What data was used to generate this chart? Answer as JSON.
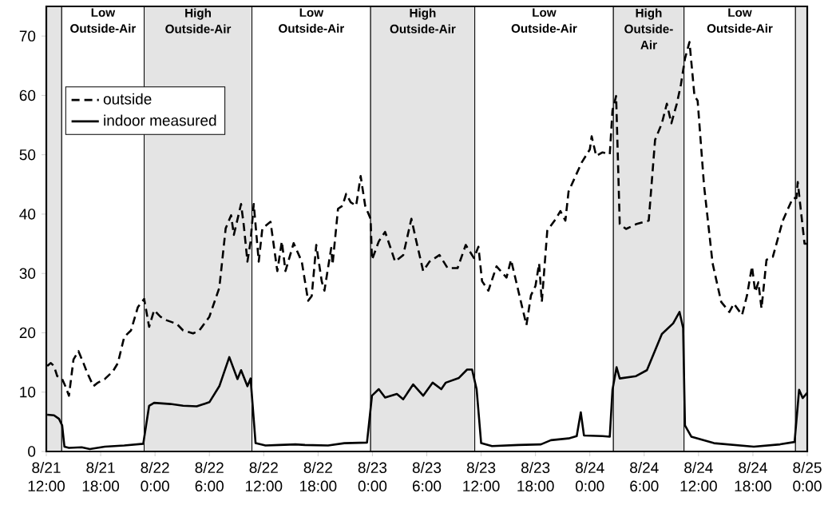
{
  "chart_data": {
    "type": "line",
    "xlim": [
      "--08-21T12:00",
      "--08-25T00:00"
    ],
    "xticks": [
      {
        "value": "--08-21T12:00",
        "label": "8/21 12:00"
      },
      {
        "value": "--08-21T18:00",
        "label": "8/21 18:00"
      },
      {
        "value": "--08-22T00:00",
        "label": "8/22 0:00"
      },
      {
        "value": "--08-22T06:00",
        "label": "8/22 6:00"
      },
      {
        "value": "--08-22T12:00",
        "label": "8/22 12:00"
      },
      {
        "value": "--08-22T18:00",
        "label": "8/22 18:00"
      },
      {
        "value": "--08-23T00:00",
        "label": "8/23 0:00"
      },
      {
        "value": "--08-23T06:00",
        "label": "8/23 6:00"
      },
      {
        "value": "--08-23T12:00",
        "label": "8/23 12:00"
      },
      {
        "value": "--08-23T18:00",
        "label": "8/23 18:00"
      },
      {
        "value": "--08-24T00:00",
        "label": "8/24 0:00"
      },
      {
        "value": "--08-24T06:00",
        "label": "8/24 6:00"
      },
      {
        "value": "--08-24T12:00",
        "label": "8/24 12:00"
      },
      {
        "value": "--08-24T18:00",
        "label": "8/24 18:00"
      },
      {
        "value": "--08-25T00:00",
        "label": "8/25 0:00"
      }
    ],
    "ylim": [
      0,
      75
    ],
    "yticks": [
      0,
      10,
      20,
      30,
      40,
      50,
      60,
      70
    ],
    "legend": "top left",
    "bands": [
      {
        "axis": "x",
        "from": "--08-21T12:00",
        "to": "--08-21T13:42",
        "color": "#e4e4e4"
      },
      {
        "axis": "x",
        "from": "--08-21T13:42",
        "to": "--08-21T22:48",
        "label": "Low Outside-Air",
        "color": "#ffffff"
      },
      {
        "axis": "x",
        "from": "--08-21T22:48",
        "to": "--08-22T10:42",
        "label": "High Outside-Air",
        "color": "#e4e4e4"
      },
      {
        "axis": "x",
        "from": "--08-22T10:42",
        "to": "--08-22T23:48",
        "label": "Low Outside-Air",
        "color": "#ffffff"
      },
      {
        "axis": "x",
        "from": "--08-22T23:48",
        "to": "--08-23T11:18",
        "label": "High Outside-Air",
        "color": "#e4e4e4"
      },
      {
        "axis": "x",
        "from": "--08-23T11:18",
        "to": "--08-24T02:36",
        "label": "Low Outside-Air",
        "color": "#ffffff"
      },
      {
        "axis": "x",
        "from": "--08-24T02:36",
        "to": "--08-24T10:24",
        "label": "High Outside-Air",
        "color": "#e4e4e4"
      },
      {
        "axis": "x",
        "from": "--08-24T10:24",
        "to": "--08-24T22:42",
        "label": "Low Outside-Air",
        "color": "#ffffff"
      },
      {
        "axis": "x",
        "from": "--08-24T22:42",
        "to": "--08-25T00:00",
        "color": "#e4e4e4"
      }
    ],
    "series": [
      {
        "name": "outside",
        "color": "#000000",
        "line_style": "dashed",
        "x": [
          "--08-21T12:06",
          "--08-21T12:30",
          "--08-21T12:51",
          "--08-21T13:12",
          "--08-21T13:45",
          "--08-21T14:06",
          "--08-21T14:30",
          "--08-21T15:00",
          "--08-21T15:33",
          "--08-21T16:06",
          "--08-21T16:30",
          "--08-21T17:12",
          "--08-21T17:42",
          "--08-21T18:27",
          "--08-21T19:21",
          "--08-21T19:54",
          "--08-21T20:36",
          "--08-21T21:21",
          "--08-21T22:06",
          "--08-21T22:48",
          "--08-21T23:21",
          "--08-21T23:54",
          "--08-22T00:36",
          "--08-22T01:18",
          "--08-22T02:24",
          "--08-22T03:06",
          "--08-22T04:12",
          "--08-22T04:54",
          "--08-22T06:00",
          "--08-22T07:06",
          "--08-22T07:48",
          "--08-22T08:24",
          "--08-22T08:42",
          "--08-22T09:30",
          "--08-22T09:48",
          "--08-22T10:12",
          "--08-22T10:33",
          "--08-22T10:54",
          "--08-22T11:27",
          "--08-22T11:51",
          "--08-22T12:45",
          "--08-22T13:30",
          "--08-22T14:00",
          "--08-22T14:24",
          "--08-22T15:18",
          "--08-22T16:12",
          "--08-22T16:54",
          "--08-22T17:18",
          "--08-22T17:48",
          "--08-22T18:24",
          "--08-22T18:42",
          "--08-22T19:27",
          "--08-22T19:36",
          "--08-22T20:12",
          "--08-22T20:42",
          "--08-22T21:06",
          "--08-22T21:36",
          "--08-22T22:12",
          "--08-22T22:42",
          "--08-22T23:12",
          "--08-22T23:48",
          "--08-22T23:57",
          "--08-23T00:42",
          "--08-23T01:24",
          "--08-23T02:00",
          "--08-23T02:30",
          "--08-23T03:24",
          "--08-23T04:18",
          "--08-23T04:51",
          "--08-23T05:36",
          "--08-23T06:18",
          "--08-23T07:24",
          "--08-23T08:18",
          "--08-23T09:24",
          "--08-23T10:18",
          "--08-23T11:12",
          "--08-23T11:42",
          "--08-23T12:06",
          "--08-23T12:48",
          "--08-23T13:42",
          "--08-23T14:48",
          "--08-23T15:18",
          "--08-23T16:06",
          "--08-23T17:00",
          "--08-23T17:30",
          "--08-23T18:00",
          "--08-23T18:24",
          "--08-23T18:42",
          "--08-23T19:18",
          "--08-23T20:12",
          "--08-23T20:45",
          "--08-23T21:18",
          "--08-23T21:39",
          "--08-23T23:06",
          "--08-24T00:00",
          "--08-24T00:12",
          "--08-24T00:42",
          "--08-24T01:24",
          "--08-24T02:12",
          "--08-24T02:30",
          "--08-24T02:54",
          "--08-24T03:18",
          "--08-24T04:00",
          "--08-24T05:06",
          "--08-24T06:30",
          "--08-24T07:12",
          "--08-24T07:57",
          "--08-24T08:30",
          "--08-24T09:00",
          "--08-24T09:36",
          "--08-24T10:03",
          "--08-24T10:30",
          "--08-24T11:00",
          "--08-24T11:33",
          "--08-24T11:54",
          "--08-24T12:36",
          "--08-24T13:33",
          "--08-24T14:30",
          "--08-24T15:24",
          "--08-24T15:54",
          "--08-24T16:48",
          "--08-24T17:21",
          "--08-24T17:54",
          "--08-24T18:15",
          "--08-24T18:36",
          "--08-24T18:57",
          "--08-24T19:30",
          "--08-24T20:12",
          "--08-24T21:18",
          "--08-24T22:24",
          "--08-24T22:48",
          "--08-24T22:57",
          "--08-24T23:42",
          "--08-25T00:00"
        ],
        "values": [
          14.4,
          14.9,
          14.4,
          12.7,
          12.2,
          11.0,
          9.4,
          15.5,
          16.9,
          14.9,
          13.3,
          11.0,
          11.6,
          12.2,
          13.5,
          14.9,
          19.3,
          20.4,
          24.3,
          25.7,
          21.0,
          23.8,
          22.7,
          22.1,
          21.5,
          20.4,
          19.9,
          20.4,
          22.7,
          27.6,
          37.6,
          39.8,
          36.5,
          41.7,
          38.1,
          32.0,
          35.4,
          41.7,
          32.0,
          37.6,
          38.7,
          30.4,
          35.4,
          30.4,
          35.1,
          32.0,
          25.4,
          26.2,
          34.8,
          28.7,
          27.1,
          34.3,
          31.5,
          40.9,
          41.4,
          43.4,
          42.0,
          41.4,
          46.4,
          41.4,
          39.2,
          32.3,
          35.4,
          37.0,
          34.3,
          32.0,
          33.1,
          39.2,
          35.4,
          30.4,
          32.0,
          33.1,
          30.9,
          30.9,
          34.8,
          32.6,
          34.5,
          28.7,
          27.1,
          31.2,
          29.3,
          32.3,
          27.1,
          21.3,
          26.3,
          27.9,
          31.7,
          25.2,
          37.2,
          39.1,
          40.5,
          38.9,
          43.8,
          48.7,
          50.9,
          53.1,
          49.8,
          50.4,
          50.1,
          57.5,
          59.9,
          38.3,
          37.5,
          38.3,
          38.9,
          52.5,
          55.3,
          58.6,
          55.3,
          58.6,
          61.8,
          66.2,
          69.0,
          59.9,
          59.1,
          44.9,
          31.7,
          25.2,
          23.5,
          24.9,
          23.0,
          26.3,
          31.2,
          26.9,
          28.5,
          24.1,
          32.3,
          32.8,
          38.9,
          42.7,
          42.7,
          45.4,
          35.0,
          35.0
        ]
      },
      {
        "name": "indoor measured",
        "color": "#000000",
        "line_style": "solid",
        "x": [
          "--08-21T12:06",
          "--08-21T12:51",
          "--08-21T13:24",
          "--08-21T13:45",
          "--08-21T14:00",
          "--08-21T14:30",
          "--08-21T15:54",
          "--08-21T16:48",
          "--08-21T18:27",
          "--08-21T20:36",
          "--08-21T22:42",
          "--08-21T23:21",
          "--08-21T23:54",
          "--08-22T01:42",
          "--08-22T03:06",
          "--08-22T04:36",
          "--08-22T06:00",
          "--08-22T07:06",
          "--08-22T08:12",
          "--08-22T09:06",
          "--08-22T09:30",
          "--08-22T10:12",
          "--08-22T10:33",
          "--08-22T11:06",
          "--08-22T12:12",
          "--08-22T13:42",
          "--08-22T15:30",
          "--08-22T16:33",
          "--08-22T19:06",
          "--08-22T20:54",
          "--08-22T23:24",
          "--08-22T23:57",
          "--08-23T00:42",
          "--08-23T01:24",
          "--08-23T02:42",
          "--08-23T03:24",
          "--08-23T04:30",
          "--08-23T05:36",
          "--08-23T06:39",
          "--08-23T07:36",
          "--08-23T08:06",
          "--08-23T09:33",
          "--08-23T10:27",
          "--08-23T11:00",
          "--08-23T11:30",
          "--08-23T12:00",
          "--08-23T13:12",
          "--08-23T16:06",
          "--08-23T18:36",
          "--08-23T19:42",
          "--08-23T21:39",
          "--08-23T22:33",
          "--08-23T23:00",
          "--08-23T23:21",
          "--08-24T01:24",
          "--08-24T02:12",
          "--08-24T02:30",
          "--08-24T02:57",
          "--08-24T03:18",
          "--08-24T05:06",
          "--08-24T06:18",
          "--08-24T07:57",
          "--08-24T09:12",
          "--08-24T09:54",
          "--08-24T10:18",
          "--08-24T10:30",
          "--08-24T11:12",
          "--08-24T13:42",
          "--08-24T18:06",
          "--08-24T21:00",
          "--08-24T22:36",
          "--08-24T23:06",
          "--08-24T23:30",
          "--08-25T00:00"
        ],
        "values": [
          6.2,
          6.1,
          5.5,
          4.4,
          0.8,
          0.6,
          0.7,
          0.4,
          0.8,
          1.0,
          1.3,
          7.7,
          8.2,
          8.0,
          7.7,
          7.6,
          8.3,
          11.0,
          15.9,
          12.2,
          13.7,
          11.0,
          12.3,
          1.4,
          1.0,
          1.1,
          1.2,
          1.1,
          1.0,
          1.4,
          1.5,
          9.4,
          10.5,
          9.1,
          9.7,
          8.8,
          11.3,
          9.4,
          11.6,
          10.5,
          11.6,
          12.4,
          13.8,
          13.8,
          10.5,
          1.4,
          0.9,
          1.1,
          1.2,
          1.9,
          2.2,
          2.6,
          6.6,
          2.7,
          2.6,
          2.5,
          10.4,
          14.2,
          12.3,
          12.7,
          13.7,
          19.8,
          21.6,
          23.5,
          20.8,
          4.4,
          2.5,
          1.4,
          0.8,
          1.2,
          1.6,
          10.4,
          9.0,
          9.9
        ]
      }
    ]
  }
}
